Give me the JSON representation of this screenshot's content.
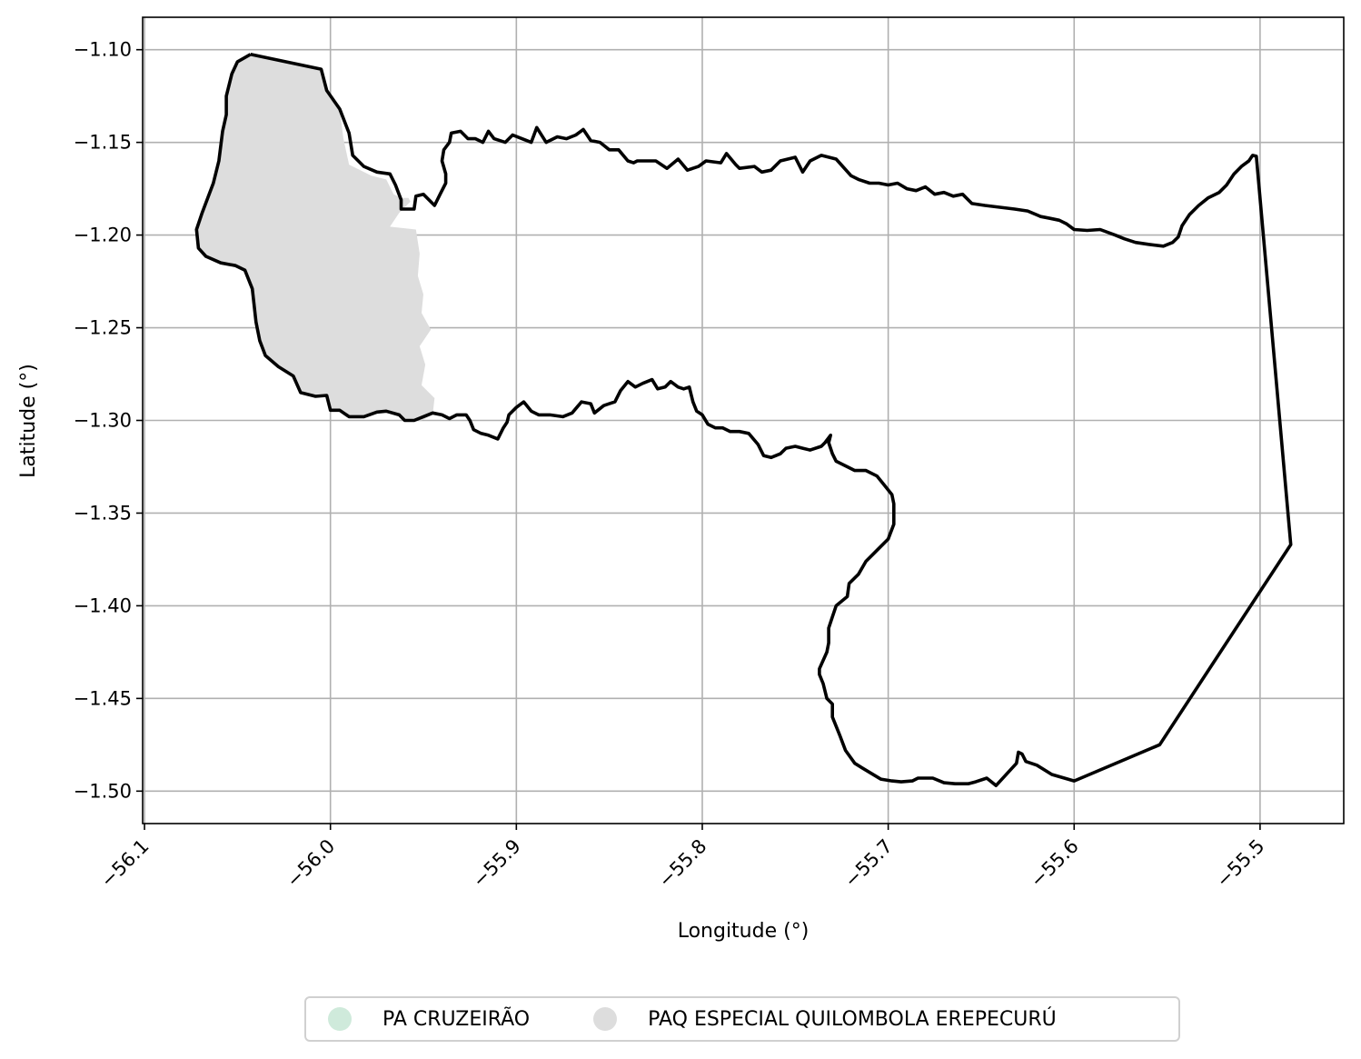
{
  "chart_data": {
    "type": "map",
    "xlabel": "Longitude (°)",
    "ylabel": "Latitude (°)",
    "xlim": [
      -56.101,
      -55.455
    ],
    "ylim": [
      -1.5175,
      -1.0825
    ],
    "xticks": [
      -56.1,
      -56.0,
      -55.9,
      -55.8,
      -55.7,
      -55.6,
      -55.5
    ],
    "xtick_labels": [
      "−56.1",
      "−56.0",
      "−55.9",
      "−55.8",
      "−55.7",
      "−55.6",
      "−55.5"
    ],
    "yticks": [
      -1.1,
      -1.15,
      -1.2,
      -1.25,
      -1.3,
      -1.35,
      -1.4,
      -1.45,
      -1.5
    ],
    "ytick_labels": [
      "−1.10",
      "−1.15",
      "−1.20",
      "−1.25",
      "−1.30",
      "−1.35",
      "−1.40",
      "−1.45",
      "−1.50"
    ],
    "grid": true,
    "legend_position": "bottom-center",
    "colors": {
      "pa_cruzeirao": "#cfeadb",
      "paq_erepecuru": "#dddddd",
      "boundary": "#000000",
      "grid": "#b0b0b0"
    },
    "legend": [
      {
        "label": "PA CRUZEIRÃO",
        "color": "#cfeadb"
      },
      {
        "label": "PAQ ESPECIAL QUILOMBOLA EREPECURÚ",
        "color": "#dddddd"
      }
    ],
    "gray_area": [
      [
        -56.043,
        -1.1025
      ],
      [
        -56.005,
        -1.1105
      ],
      [
        -56.002,
        -1.122
      ],
      [
        -55.995,
        -1.132
      ],
      [
        -55.993,
        -1.148
      ],
      [
        -55.99,
        -1.162
      ],
      [
        -55.978,
        -1.168
      ],
      [
        -55.97,
        -1.17
      ],
      [
        -55.966,
        -1.178
      ],
      [
        -55.962,
        -1.18
      ],
      [
        -55.958,
        -1.18
      ],
      [
        -55.957,
        -1.182
      ],
      [
        -55.963,
        -1.188
      ],
      [
        -55.968,
        -1.1955
      ],
      [
        -55.954,
        -1.197
      ],
      [
        -55.952,
        -1.21
      ],
      [
        -55.953,
        -1.222
      ],
      [
        -55.95,
        -1.232
      ],
      [
        -55.951,
        -1.242
      ],
      [
        -55.946,
        -1.251
      ],
      [
        -55.952,
        -1.26
      ],
      [
        -55.949,
        -1.27
      ],
      [
        -55.951,
        -1.281
      ],
      [
        -55.944,
        -1.288
      ],
      [
        -55.945,
        -1.297
      ],
      [
        -55.951,
        -1.3
      ],
      [
        -55.958,
        -1.3
      ],
      [
        -55.962,
        -1.298
      ],
      [
        -55.969,
        -1.295
      ],
      [
        -55.976,
        -1.2955
      ],
      [
        -55.985,
        -1.2985
      ],
      [
        -55.991,
        -1.2975
      ],
      [
        -55.995,
        -1.2945
      ],
      [
        -56.0,
        -1.2945
      ],
      [
        -56.002,
        -1.2865
      ],
      [
        -56.008,
        -1.287
      ],
      [
        -56.016,
        -1.285
      ],
      [
        -56.02,
        -1.276
      ],
      [
        -56.028,
        -1.271
      ],
      [
        -56.035,
        -1.265
      ],
      [
        -56.038,
        -1.257
      ],
      [
        -56.04,
        -1.247
      ],
      [
        -56.042,
        -1.229
      ],
      [
        -56.046,
        -1.219
      ],
      [
        -56.051,
        -1.2165
      ],
      [
        -56.059,
        -1.215
      ],
      [
        -56.067,
        -1.2115
      ],
      [
        -56.071,
        -1.207
      ],
      [
        -56.072,
        -1.197
      ],
      [
        -56.069,
        -1.188
      ],
      [
        -56.063,
        -1.172
      ],
      [
        -56.06,
        -1.16
      ],
      [
        -56.058,
        -1.144
      ],
      [
        -56.056,
        -1.135
      ],
      [
        -56.056,
        -1.125
      ],
      [
        -56.053,
        -1.113
      ],
      [
        -56.05,
        -1.1065
      ],
      [
        -56.043,
        -1.1025
      ]
    ],
    "boundary": [
      [
        -56.043,
        -1.1025
      ],
      [
        -56.005,
        -1.1105
      ],
      [
        -56.002,
        -1.122
      ],
      [
        -55.995,
        -1.132
      ],
      [
        -55.99,
        -1.145
      ],
      [
        -55.988,
        -1.157
      ],
      [
        -55.982,
        -1.163
      ],
      [
        -55.975,
        -1.166
      ],
      [
        -55.968,
        -1.167
      ],
      [
        -55.965,
        -1.173
      ],
      [
        -55.962,
        -1.181
      ],
      [
        -55.962,
        -1.186
      ],
      [
        -55.955,
        -1.186
      ],
      [
        -55.954,
        -1.179
      ],
      [
        -55.95,
        -1.178
      ],
      [
        -55.944,
        -1.184
      ],
      [
        -55.941,
        -1.178
      ],
      [
        -55.938,
        -1.172
      ],
      [
        -55.938,
        -1.167
      ],
      [
        -55.94,
        -1.16
      ],
      [
        -55.939,
        -1.154
      ],
      [
        -55.936,
        -1.15
      ],
      [
        -55.935,
        -1.145
      ],
      [
        -55.93,
        -1.144
      ],
      [
        -55.926,
        -1.148
      ],
      [
        -55.922,
        -1.148
      ],
      [
        -55.918,
        -1.15
      ],
      [
        -55.915,
        -1.144
      ],
      [
        -55.912,
        -1.148
      ],
      [
        -55.906,
        -1.15
      ],
      [
        -55.902,
        -1.146
      ],
      [
        -55.897,
        -1.148
      ],
      [
        -55.892,
        -1.15
      ],
      [
        -55.889,
        -1.142
      ],
      [
        -55.884,
        -1.15
      ],
      [
        -55.878,
        -1.147
      ],
      [
        -55.873,
        -1.148
      ],
      [
        -55.868,
        -1.146
      ],
      [
        -55.864,
        -1.143
      ],
      [
        -55.86,
        -1.149
      ],
      [
        -55.855,
        -1.15
      ],
      [
        -55.85,
        -1.154
      ],
      [
        -55.845,
        -1.154
      ],
      [
        -55.84,
        -1.16
      ],
      [
        -55.837,
        -1.161
      ],
      [
        -55.835,
        -1.16
      ],
      [
        -55.825,
        -1.16
      ],
      [
        -55.819,
        -1.164
      ],
      [
        -55.813,
        -1.159
      ],
      [
        -55.808,
        -1.165
      ],
      [
        -55.802,
        -1.163
      ],
      [
        -55.798,
        -1.16
      ],
      [
        -55.79,
        -1.161
      ],
      [
        -55.787,
        -1.156
      ],
      [
        -55.782,
        -1.162
      ],
      [
        -55.78,
        -1.164
      ],
      [
        -55.772,
        -1.163
      ],
      [
        -55.768,
        -1.166
      ],
      [
        -55.763,
        -1.165
      ],
      [
        -55.758,
        -1.16
      ],
      [
        -55.75,
        -1.158
      ],
      [
        -55.746,
        -1.166
      ],
      [
        -55.742,
        -1.16
      ],
      [
        -55.736,
        -1.157
      ],
      [
        -55.728,
        -1.159
      ],
      [
        -55.72,
        -1.168
      ],
      [
        -55.716,
        -1.17
      ],
      [
        -55.71,
        -1.172
      ],
      [
        -55.705,
        -1.172
      ],
      [
        -55.7,
        -1.173
      ],
      [
        -55.695,
        -1.172
      ],
      [
        -55.69,
        -1.175
      ],
      [
        -55.685,
        -1.176
      ],
      [
        -55.68,
        -1.174
      ],
      [
        -55.675,
        -1.178
      ],
      [
        -55.67,
        -1.177
      ],
      [
        -55.665,
        -1.179
      ],
      [
        -55.66,
        -1.178
      ],
      [
        -55.655,
        -1.183
      ],
      [
        -55.648,
        -1.184
      ],
      [
        -55.64,
        -1.185
      ],
      [
        -55.632,
        -1.186
      ],
      [
        -55.625,
        -1.187
      ],
      [
        -55.618,
        -1.19
      ],
      [
        -55.613,
        -1.191
      ],
      [
        -55.608,
        -1.192
      ],
      [
        -55.604,
        -1.194
      ],
      [
        -55.6,
        -1.197
      ],
      [
        -55.593,
        -1.1975
      ],
      [
        -55.586,
        -1.197
      ],
      [
        -55.578,
        -1.2
      ],
      [
        -55.573,
        -1.202
      ],
      [
        -55.567,
        -1.204
      ],
      [
        -55.56,
        -1.205
      ],
      [
        -55.552,
        -1.206
      ],
      [
        -55.547,
        -1.204
      ],
      [
        -55.544,
        -1.201
      ],
      [
        -55.542,
        -1.195
      ],
      [
        -55.538,
        -1.189
      ],
      [
        -55.533,
        -1.184
      ],
      [
        -55.528,
        -1.18
      ],
      [
        -55.522,
        -1.177
      ],
      [
        -55.518,
        -1.173
      ],
      [
        -55.514,
        -1.167
      ],
      [
        -55.51,
        -1.163
      ],
      [
        -55.506,
        -1.16
      ],
      [
        -55.504,
        -1.157
      ],
      [
        -55.502,
        -1.1575
      ],
      [
        -55.4835,
        -1.367
      ],
      [
        -55.554,
        -1.475
      ],
      [
        -55.6,
        -1.4945
      ],
      [
        -55.612,
        -1.491
      ],
      [
        -55.62,
        -1.486
      ],
      [
        -55.626,
        -1.484
      ],
      [
        -55.628,
        -1.48
      ],
      [
        -55.63,
        -1.479
      ],
      [
        -55.631,
        -1.485
      ],
      [
        -55.642,
        -1.497
      ],
      [
        -55.647,
        -1.493
      ],
      [
        -55.653,
        -1.495
      ],
      [
        -55.657,
        -1.496
      ],
      [
        -55.664,
        -1.496
      ],
      [
        -55.67,
        -1.4955
      ],
      [
        -55.676,
        -1.493
      ],
      [
        -55.684,
        -1.493
      ],
      [
        -55.687,
        -1.4945
      ],
      [
        -55.693,
        -1.495
      ],
      [
        -55.698,
        -1.4945
      ],
      [
        -55.704,
        -1.4935
      ],
      [
        -55.709,
        -1.4905
      ],
      [
        -55.714,
        -1.4875
      ],
      [
        -55.718,
        -1.485
      ],
      [
        -55.723,
        -1.478
      ],
      [
        -55.726,
        -1.47
      ],
      [
        -55.728,
        -1.465
      ],
      [
        -55.73,
        -1.46
      ],
      [
        -55.73,
        -1.453
      ],
      [
        -55.733,
        -1.45
      ],
      [
        -55.735,
        -1.442
      ],
      [
        -55.737,
        -1.437
      ],
      [
        -55.737,
        -1.434
      ],
      [
        -55.733,
        -1.425
      ],
      [
        -55.732,
        -1.42
      ],
      [
        -55.732,
        -1.412
      ],
      [
        -55.73,
        -1.406
      ],
      [
        -55.728,
        -1.4
      ],
      [
        -55.722,
        -1.395
      ],
      [
        -55.721,
        -1.388
      ],
      [
        -55.716,
        -1.383
      ],
      [
        -55.712,
        -1.376
      ],
      [
        -55.708,
        -1.372
      ],
      [
        -55.704,
        -1.368
      ],
      [
        -55.7,
        -1.364
      ],
      [
        -55.697,
        -1.356
      ],
      [
        -55.697,
        -1.345
      ],
      [
        -55.698,
        -1.34
      ],
      [
        -55.702,
        -1.335
      ],
      [
        -55.706,
        -1.33
      ],
      [
        -55.712,
        -1.327
      ],
      [
        -55.718,
        -1.327
      ],
      [
        -55.722,
        -1.325
      ],
      [
        -55.728,
        -1.322
      ],
      [
        -55.73,
        -1.318
      ],
      [
        -55.732,
        -1.312
      ],
      [
        -55.731,
        -1.308
      ],
      [
        -55.734,
        -1.312
      ],
      [
        -55.736,
        -1.314
      ],
      [
        -55.742,
        -1.316
      ],
      [
        -55.746,
        -1.315
      ],
      [
        -55.75,
        -1.314
      ],
      [
        -55.755,
        -1.315
      ],
      [
        -55.758,
        -1.318
      ],
      [
        -55.763,
        -1.32
      ],
      [
        -55.767,
        -1.319
      ],
      [
        -55.77,
        -1.313
      ],
      [
        -55.775,
        -1.307
      ],
      [
        -55.78,
        -1.306
      ],
      [
        -55.785,
        -1.306
      ],
      [
        -55.789,
        -1.304
      ],
      [
        -55.793,
        -1.304
      ],
      [
        -55.797,
        -1.302
      ],
      [
        -55.8,
        -1.297
      ],
      [
        -55.803,
        -1.295
      ],
      [
        -55.805,
        -1.29
      ],
      [
        -55.806,
        -1.286
      ],
      [
        -55.807,
        -1.282
      ],
      [
        -55.81,
        -1.283
      ],
      [
        -55.813,
        -1.282
      ],
      [
        -55.817,
        -1.279
      ],
      [
        -55.82,
        -1.282
      ],
      [
        -55.824,
        -1.283
      ],
      [
        -55.827,
        -1.278
      ],
      [
        -55.832,
        -1.28
      ],
      [
        -55.836,
        -1.282
      ],
      [
        -55.84,
        -1.279
      ],
      [
        -55.844,
        -1.284
      ],
      [
        -55.847,
        -1.29
      ],
      [
        -55.85,
        -1.291
      ],
      [
        -55.853,
        -1.292
      ],
      [
        -55.858,
        -1.296
      ],
      [
        -55.86,
        -1.291
      ],
      [
        -55.865,
        -1.29
      ],
      [
        -55.87,
        -1.296
      ],
      [
        -55.875,
        -1.298
      ],
      [
        -55.882,
        -1.297
      ],
      [
        -55.888,
        -1.297
      ],
      [
        -55.892,
        -1.295
      ],
      [
        -55.896,
        -1.29
      ],
      [
        -55.9,
        -1.293
      ],
      [
        -55.904,
        -1.297
      ],
      [
        -55.905,
        -1.301
      ],
      [
        -55.907,
        -1.304
      ],
      [
        -55.91,
        -1.31
      ],
      [
        -55.915,
        -1.308
      ],
      [
        -55.919,
        -1.307
      ],
      [
        -55.923,
        -1.305
      ],
      [
        -55.925,
        -1.3
      ],
      [
        -55.927,
        -1.297
      ],
      [
        -55.93,
        -1.297
      ],
      [
        -55.932,
        -1.297
      ],
      [
        -55.936,
        -1.299
      ],
      [
        -55.94,
        -1.297
      ],
      [
        -55.945,
        -1.296
      ],
      [
        -55.95,
        -1.298
      ],
      [
        -55.955,
        -1.3
      ],
      [
        -55.96,
        -1.3
      ],
      [
        -55.963,
        -1.297
      ],
      [
        -55.97,
        -1.295
      ],
      [
        -55.975,
        -1.2955
      ],
      [
        -55.982,
        -1.298
      ],
      [
        -55.99,
        -1.298
      ],
      [
        -55.995,
        -1.2945
      ],
      [
        -56.0,
        -1.2945
      ],
      [
        -56.002,
        -1.2865
      ],
      [
        -56.008,
        -1.287
      ],
      [
        -56.016,
        -1.285
      ],
      [
        -56.02,
        -1.276
      ],
      [
        -56.028,
        -1.271
      ],
      [
        -56.035,
        -1.265
      ],
      [
        -56.038,
        -1.257
      ],
      [
        -56.04,
        -1.247
      ],
      [
        -56.042,
        -1.229
      ],
      [
        -56.046,
        -1.219
      ],
      [
        -56.051,
        -1.2165
      ],
      [
        -56.059,
        -1.215
      ],
      [
        -56.067,
        -1.2115
      ],
      [
        -56.071,
        -1.207
      ],
      [
        -56.072,
        -1.197
      ],
      [
        -56.069,
        -1.188
      ],
      [
        -56.063,
        -1.172
      ],
      [
        -56.06,
        -1.16
      ],
      [
        -56.058,
        -1.144
      ],
      [
        -56.056,
        -1.135
      ],
      [
        -56.056,
        -1.125
      ],
      [
        -56.053,
        -1.113
      ],
      [
        -56.05,
        -1.1065
      ],
      [
        -56.043,
        -1.1025
      ]
    ]
  }
}
